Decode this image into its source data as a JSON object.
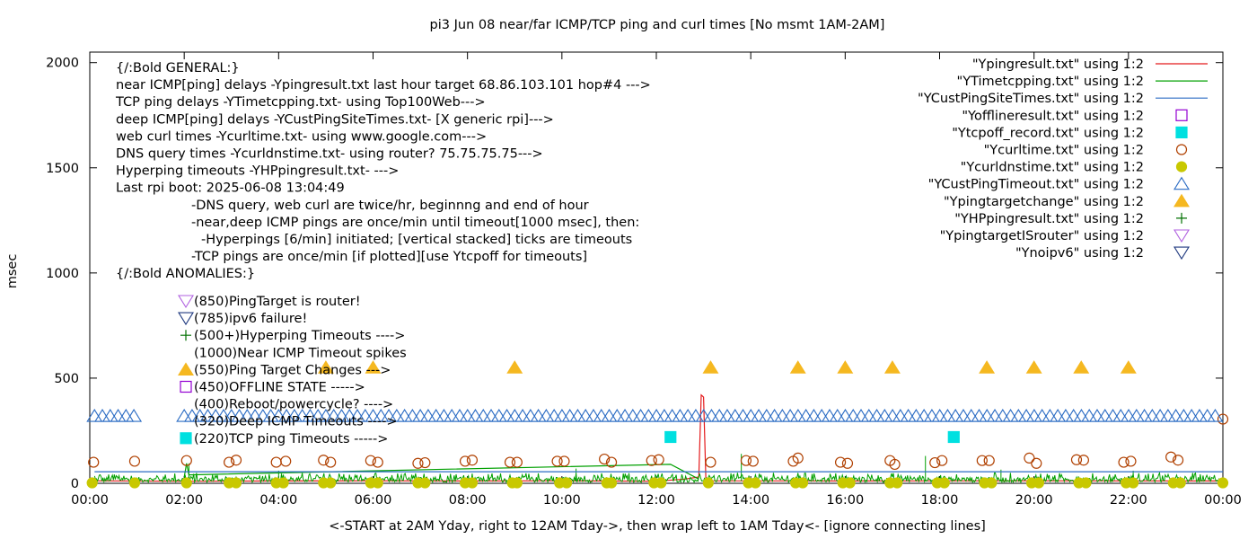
{
  "chart_data": {
    "type": "line",
    "title": "pi3 Jun 08  near/far ICMP/TCP ping and curl times [No msmt 1AM-2AM]",
    "xlabel": "<-START at 2AM Yday, right to 12AM Tday->, then wrap left to 1AM Tday<- [ignore connecting lines]",
    "ylabel": "msec",
    "xlim": [
      0,
      24
    ],
    "ylim": [
      0,
      2050
    ],
    "x_ticks": [
      "00:00",
      "02:00",
      "04:00",
      "06:00",
      "08:00",
      "10:00",
      "12:00",
      "14:00",
      "16:00",
      "18:00",
      "20:00",
      "22:00",
      "00:00"
    ],
    "y_ticks": [
      0,
      500,
      1000,
      1500,
      2000
    ],
    "grid": false,
    "legend_position": "top-right",
    "annotation_lines": [
      {
        "text": "{/:Bold GENERAL:}",
        "indent": 0
      },
      {
        "text": "near ICMP[ping] delays -Ypingresult.txt last hour target 68.86.103.101 hop#4 --->",
        "indent": 0
      },
      {
        "text": "TCP ping delays -YTimetcpping.txt- using Top100Web--->",
        "indent": 0
      },
      {
        "text": "deep ICMP[ping] delays -YCustPingSiteTimes.txt- [X generic rpi]--->",
        "indent": 0
      },
      {
        "text": "web curl times -Ycurltime.txt- using www.google.com--->",
        "indent": 0
      },
      {
        "text": "DNS query times -Ycurldnstime.txt- using router? 75.75.75.75--->",
        "indent": 0
      },
      {
        "text": "Hyperping timeouts -YHPpingresult.txt- --->",
        "indent": 0
      },
      {
        "text": "Last rpi boot: 2025-06-08 13:04:49",
        "indent": 0
      },
      {
        "text": "-DNS query, web curl are twice/hr, beginnng and end of hour",
        "indent": 1
      },
      {
        "text": "-near,deep ICMP pings are once/min until timeout[1000 msec], then:",
        "indent": 1
      },
      {
        "text": "-Hyperpings [6/min] initiated; [vertical stacked] ticks are timeouts",
        "indent": 2
      },
      {
        "text": "-TCP pings are once/min [if plotted][use Ytcpoff for timeouts]",
        "indent": 1
      },
      {
        "text": "{/:Bold ANOMALIES:}",
        "indent": 0
      }
    ],
    "anomaly_lines": [
      {
        "text": "(850)PingTarget is router!",
        "symbol": "tri-down-purple"
      },
      {
        "text": "(785)ipv6 failure!",
        "symbol": "tri-down-navy"
      },
      {
        "text": "(500+)Hyperping Timeouts ---->",
        "symbol": "plus-green"
      },
      {
        "text": "(1000)Near ICMP Timeout spikes",
        "symbol": "none"
      },
      {
        "text": "(550)Ping Target Changes --->",
        "symbol": "tri-up-orange"
      },
      {
        "text": "(450)OFFLINE STATE ----->",
        "symbol": "square-purple"
      },
      {
        "text": "(400)Reboot/powercycle? ---->",
        "symbol": "none"
      },
      {
        "text": "(320)Deep ICMP Timeouts ---->",
        "symbol": "none"
      },
      {
        "text": "(220)TCP ping Timeouts ----->",
        "symbol": "square-cyan"
      }
    ],
    "series": [
      {
        "name": "\"Ypingresult.txt\" using 1:2",
        "style": "line",
        "color": "#e41a1c",
        "points": [
          [
            0.05,
            12
          ],
          [
            2,
            10
          ],
          [
            4,
            11
          ],
          [
            6,
            12
          ],
          [
            8,
            11
          ],
          [
            10,
            12
          ],
          [
            12,
            10
          ],
          [
            12.6,
            20
          ],
          [
            12.9,
            30
          ],
          [
            12.95,
            420
          ],
          [
            13.0,
            410
          ],
          [
            13.05,
            15
          ],
          [
            13.1,
            12
          ],
          [
            16,
            11
          ],
          [
            20,
            12
          ],
          [
            24,
            11
          ]
        ]
      },
      {
        "name": "\"YTimetcpping.txt\" using 1:2",
        "style": "line",
        "color": "#00a000",
        "band": {
          "x_start": 0.1,
          "x_end": 24,
          "low": 5,
          "high": 50
        },
        "spikes": [
          [
            2.1,
            95
          ],
          [
            4.0,
            60
          ],
          [
            10.3,
            70
          ],
          [
            13.8,
            140
          ],
          [
            17.7,
            130
          ],
          [
            19.3,
            65
          ],
          [
            22.1,
            60
          ]
        ],
        "points": [
          [
            2.0,
            30
          ],
          [
            2.05,
            95
          ],
          [
            2.1,
            40
          ],
          [
            12.3,
            90
          ],
          [
            12.9,
            20
          ]
        ]
      },
      {
        "name": "\"YCustPingSiteTimes.txt\" using 1:2",
        "style": "line",
        "color": "#2b6cc4",
        "points": [
          [
            0.1,
            55
          ],
          [
            12.3,
            55
          ],
          [
            12.6,
            55
          ],
          [
            13.0,
            55
          ],
          [
            24,
            55
          ]
        ]
      },
      {
        "name": "\"Yofflineresult.txt\" using 1:2",
        "style": "open-square",
        "color": "#9400d3",
        "points": []
      },
      {
        "name": "\"Ytcpoff_record.txt\" using 1:2",
        "style": "filled-square",
        "color": "#00e0e0",
        "points": [
          [
            12.3,
            220
          ],
          [
            18.3,
            220
          ]
        ]
      },
      {
        "name": "\"Ycurltime.txt\" using 1:2",
        "style": "open-circle",
        "color": "#b04000",
        "points": [
          [
            0.08,
            100
          ],
          [
            0.95,
            105
          ],
          [
            2.05,
            108
          ],
          [
            2.95,
            100
          ],
          [
            3.1,
            110
          ],
          [
            3.95,
            100
          ],
          [
            4.15,
            105
          ],
          [
            4.95,
            110
          ],
          [
            5.1,
            100
          ],
          [
            5.95,
            108
          ],
          [
            6.1,
            100
          ],
          [
            6.95,
            95
          ],
          [
            7.1,
            98
          ],
          [
            7.95,
            105
          ],
          [
            8.1,
            110
          ],
          [
            8.9,
            100
          ],
          [
            9.05,
            100
          ],
          [
            9.9,
            105
          ],
          [
            10.05,
            105
          ],
          [
            10.9,
            115
          ],
          [
            11.05,
            100
          ],
          [
            11.9,
            108
          ],
          [
            12.05,
            112
          ],
          [
            13.15,
            100
          ],
          [
            13.9,
            108
          ],
          [
            14.05,
            105
          ],
          [
            14.9,
            105
          ],
          [
            15.0,
            120
          ],
          [
            15.9,
            100
          ],
          [
            16.05,
            95
          ],
          [
            16.95,
            108
          ],
          [
            17.05,
            90
          ],
          [
            17.9,
            98
          ],
          [
            18.05,
            108
          ],
          [
            18.9,
            108
          ],
          [
            19.05,
            108
          ],
          [
            19.9,
            120
          ],
          [
            20.05,
            95
          ],
          [
            20.9,
            112
          ],
          [
            21.05,
            110
          ],
          [
            21.9,
            100
          ],
          [
            22.05,
            105
          ],
          [
            22.9,
            125
          ],
          [
            23.05,
            110
          ],
          [
            24,
            305
          ]
        ]
      },
      {
        "name": "\"Ycurldnstime.txt\" using 1:2",
        "style": "filled-circle",
        "color": "#c8c800",
        "points": [
          [
            0.05,
            2
          ],
          [
            0.95,
            2
          ],
          [
            2.05,
            2
          ],
          [
            2.95,
            2
          ],
          [
            3.1,
            2
          ],
          [
            3.95,
            2
          ],
          [
            4.1,
            2
          ],
          [
            4.95,
            2
          ],
          [
            5.1,
            2
          ],
          [
            5.95,
            2
          ],
          [
            6.1,
            2
          ],
          [
            6.95,
            2
          ],
          [
            7.1,
            2
          ],
          [
            7.95,
            2
          ],
          [
            8.1,
            2
          ],
          [
            8.95,
            2
          ],
          [
            9.05,
            2
          ],
          [
            9.95,
            2
          ],
          [
            10.1,
            2
          ],
          [
            10.95,
            2
          ],
          [
            11.05,
            2
          ],
          [
            11.95,
            2
          ],
          [
            12.1,
            2
          ],
          [
            13.1,
            2
          ],
          [
            13.95,
            2
          ],
          [
            14.1,
            2
          ],
          [
            14.95,
            2
          ],
          [
            15.1,
            2
          ],
          [
            15.95,
            2
          ],
          [
            16.1,
            2
          ],
          [
            16.95,
            2
          ],
          [
            17.1,
            2
          ],
          [
            17.95,
            2
          ],
          [
            18.1,
            2
          ],
          [
            18.95,
            2
          ],
          [
            19.1,
            2
          ],
          [
            19.95,
            2
          ],
          [
            20.1,
            2
          ],
          [
            20.95,
            2
          ],
          [
            21.1,
            2
          ],
          [
            21.95,
            2
          ],
          [
            22.1,
            2
          ],
          [
            22.95,
            2
          ],
          [
            23.1,
            2
          ],
          [
            24,
            2
          ]
        ]
      },
      {
        "name": "\"YCustPingTimeout.txt\" using 1:2",
        "style": "open-triangle-up",
        "color": "#2b6cc4",
        "value": 320,
        "spacing_hours": 0.1667,
        "ranges": [
          [
            0.1,
            1.0
          ],
          [
            2.0,
            24.0
          ]
        ]
      },
      {
        "name": "\"Ypingtargetchange\" using 1:2",
        "style": "filled-triangle-up",
        "color": "#f5b820",
        "points": [
          [
            5.0,
            550
          ],
          [
            6.0,
            550
          ],
          [
            9.0,
            550
          ],
          [
            13.15,
            550
          ],
          [
            15.0,
            550
          ],
          [
            16.0,
            550
          ],
          [
            17.0,
            550
          ],
          [
            19.0,
            550
          ],
          [
            20.0,
            550
          ],
          [
            21.0,
            550
          ],
          [
            22.0,
            550
          ]
        ]
      },
      {
        "name": "\"YHPpingresult.txt\" using 1:2",
        "style": "plus",
        "color": "#007000",
        "points": []
      },
      {
        "name": "\"YpingtargetISrouter\" using 1:2",
        "style": "open-triangle-down",
        "color": "#b060e0",
        "points": []
      },
      {
        "name": "\"Ynoipv6\" using 1:2",
        "style": "open-triangle-down",
        "color": "#203a80",
        "points": []
      }
    ]
  }
}
